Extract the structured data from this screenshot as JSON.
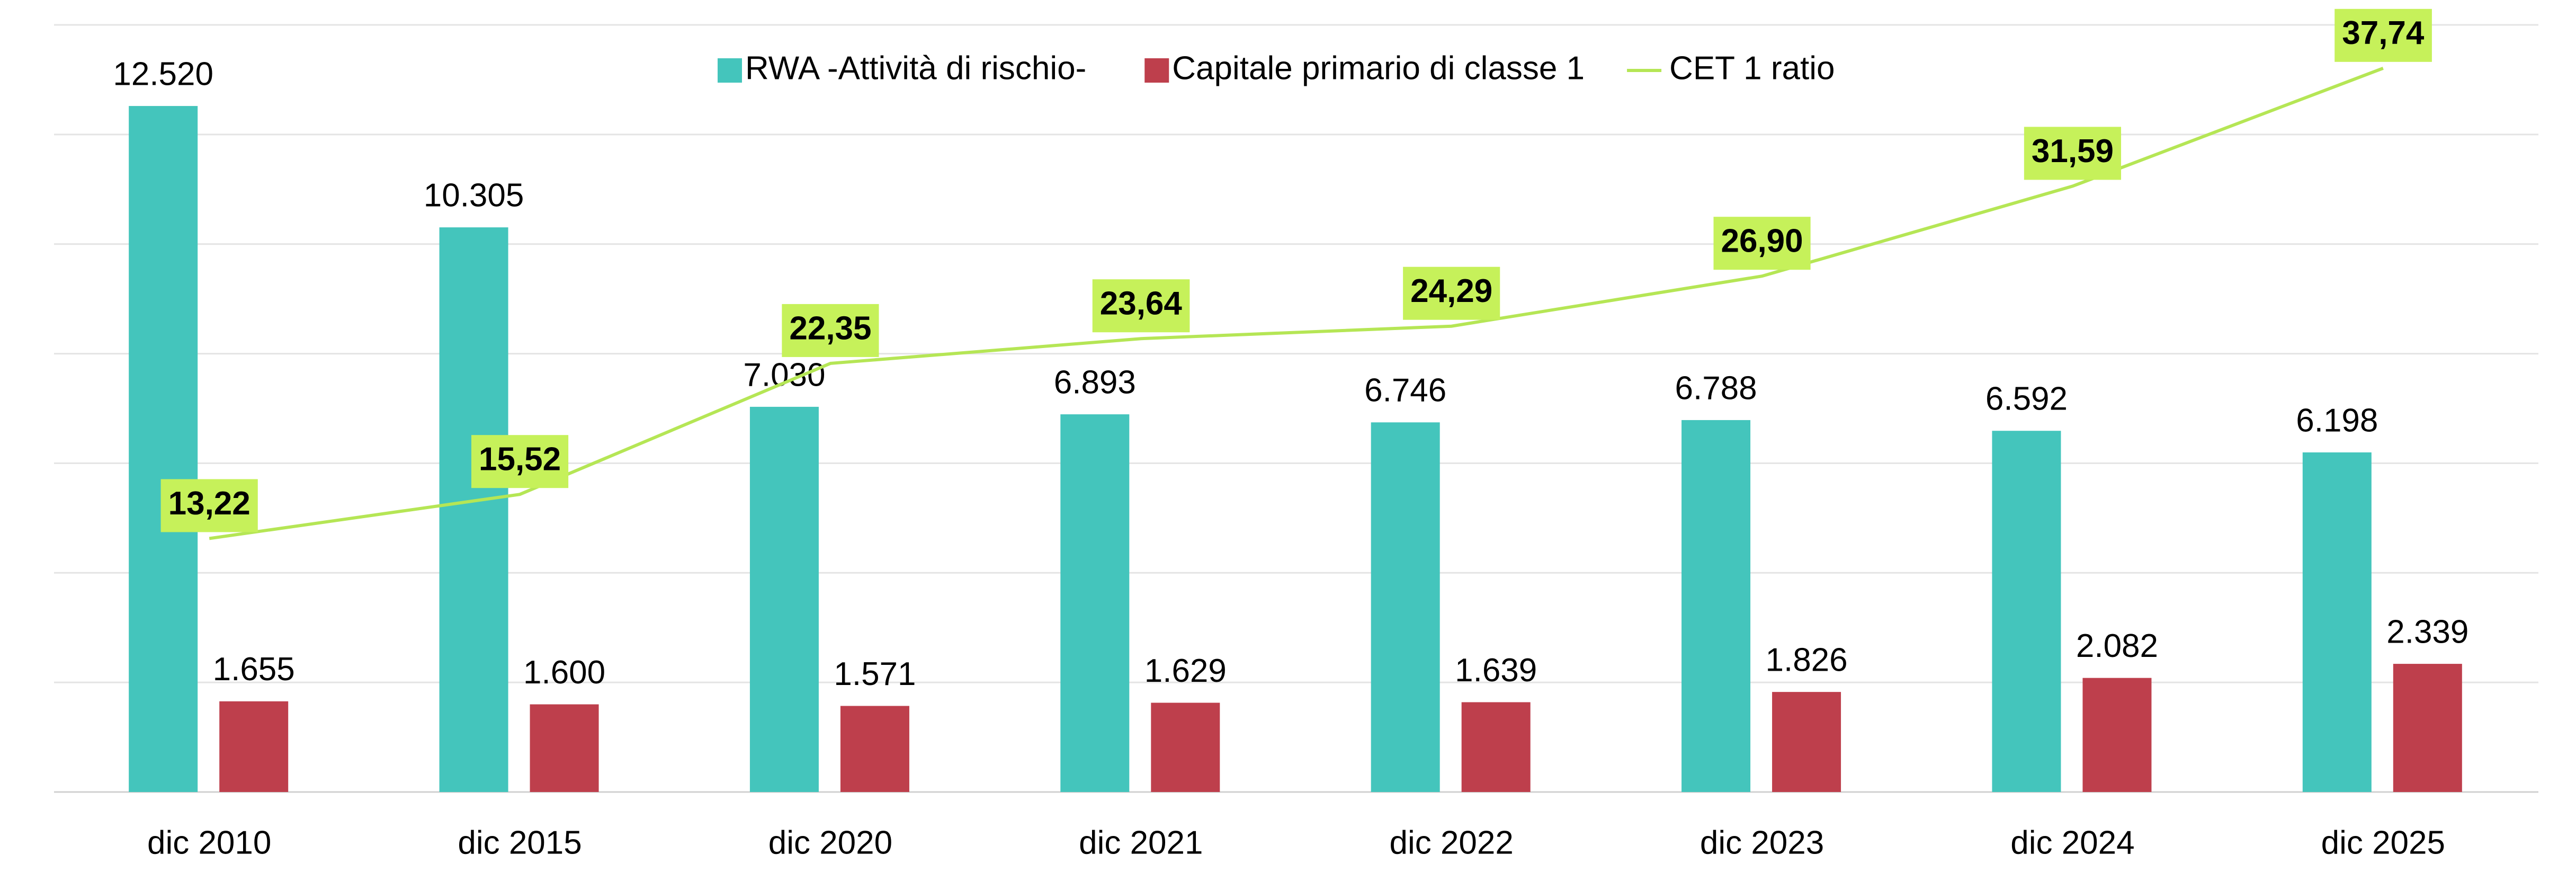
{
  "chart_data": {
    "type": "bar",
    "categories": [
      "dic 2010",
      "dic 2015",
      "dic 2020",
      "dic 2021",
      "dic 2022",
      "dic 2023",
      "dic 2024",
      "dic 2025"
    ],
    "series": [
      {
        "name": "RWA -Attività di rischio-",
        "color": "#44c5bc",
        "values": [
          12520,
          10305,
          7030,
          6893,
          6746,
          6788,
          6592,
          6198
        ],
        "value_labels": [
          "12.520",
          "10.305",
          "7.030",
          "6.893",
          "6.746",
          "6.788",
          "6.592",
          "6.198"
        ]
      },
      {
        "name": "Capitale primario di classe 1",
        "color": "#be3f4c",
        "values": [
          1655,
          1600,
          1571,
          1629,
          1639,
          1826,
          2082,
          2339
        ],
        "value_labels": [
          "1.655",
          "1.600",
          "1.571",
          "1.629",
          "1.639",
          "1.826",
          "2.082",
          "2.339"
        ]
      },
      {
        "name": "CET 1 ratio",
        "type": "line",
        "axis": "y2",
        "color": "#b5e655",
        "values": [
          13.22,
          15.52,
          22.35,
          23.64,
          24.29,
          26.9,
          31.59,
          37.74
        ],
        "value_labels": [
          "13,22",
          "15,52",
          "22,35",
          "23,64",
          "24,29",
          "26,90",
          "31,59",
          "37,74"
        ]
      }
    ],
    "ylim": [
      0,
      14000
    ],
    "yticks": [
      0,
      2000,
      4000,
      6000,
      8000,
      10000,
      12000,
      14000
    ],
    "y2lim": [
      0,
      40
    ],
    "grid": true,
    "legend": "top"
  }
}
